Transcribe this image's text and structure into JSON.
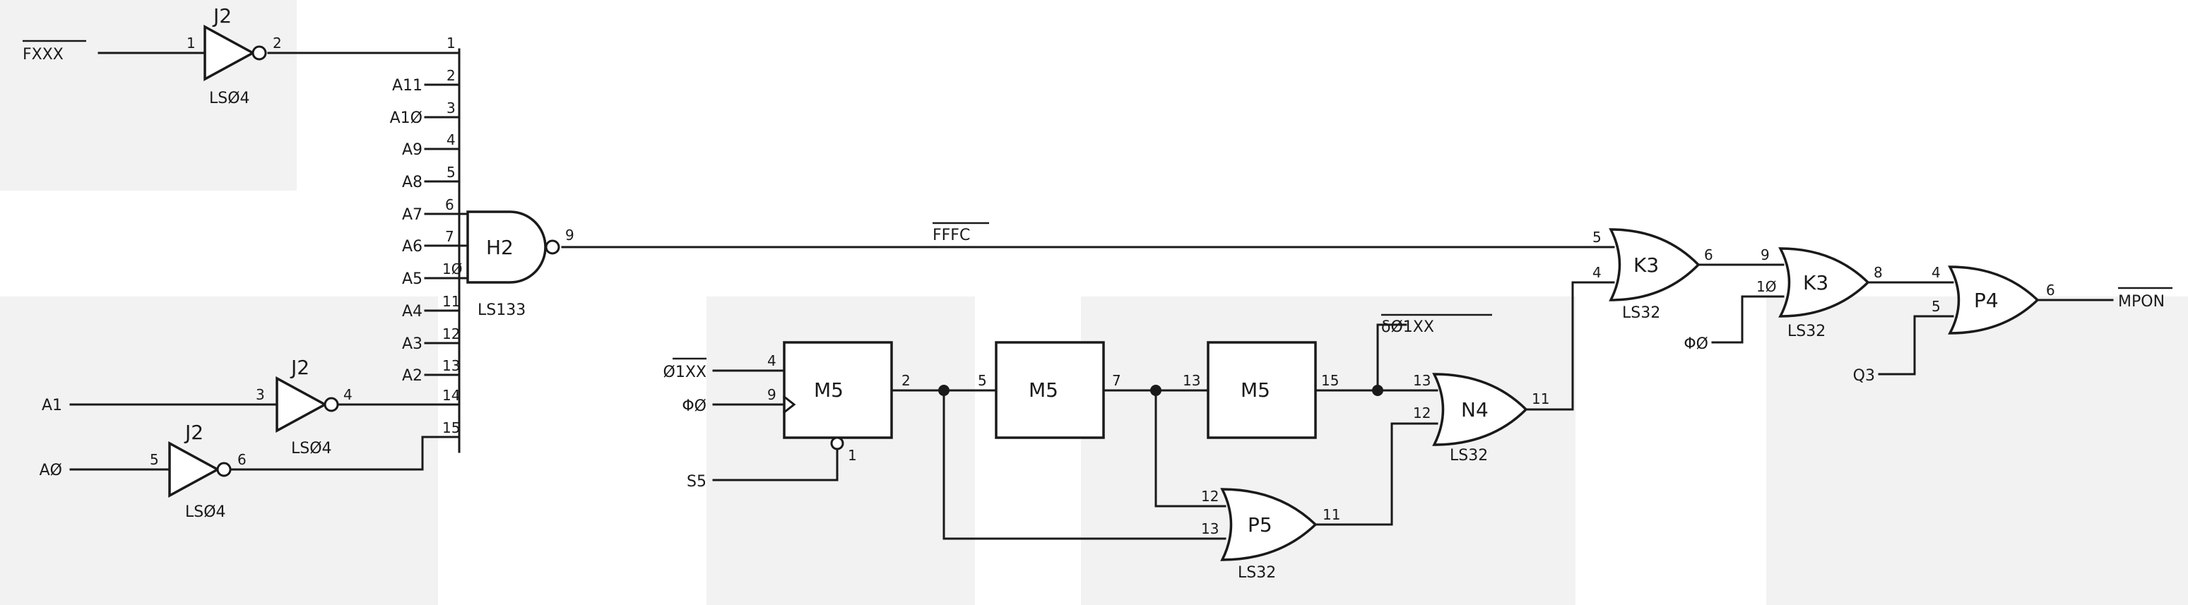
{
  "colors": {
    "ink": "#1a1a1a",
    "paper": "#ffffff",
    "watermark": "#f2f2f2"
  },
  "signals": {
    "fxxx": "FXXX",
    "a11": "A11",
    "a10": "A1Ø",
    "a9": "A9",
    "a8": "A8",
    "a7": "A7",
    "a6": "A6",
    "a5": "A5",
    "a4": "A4",
    "a3": "A3",
    "a2": "A2",
    "a1": "A1",
    "a0": "AØ",
    "fffc": "FFFC",
    "s01xx_in": "Ø1XX",
    "phi0_m5": "ΦØ",
    "s5": "S5",
    "s01xx_out": "δØ1XX",
    "phi0_k3": "ΦØ",
    "q3": "Q3",
    "mpon": "MPON"
  },
  "chips": {
    "j2_top": {
      "ref": "J2",
      "part": "LSØ4",
      "pin_in": "1",
      "pin_out": "2"
    },
    "j2_mid": {
      "ref": "J2",
      "part": "LSØ4",
      "pin_in": "3",
      "pin_out": "4"
    },
    "j2_bot": {
      "ref": "J2",
      "part": "LSØ4",
      "pin_in": "5",
      "pin_out": "6"
    },
    "h2": {
      "ref": "H2",
      "part": "LS133",
      "pin_out": "9",
      "pins": [
        "1",
        "2",
        "3",
        "4",
        "5",
        "6",
        "7",
        "1Ø",
        "11",
        "12",
        "13",
        "14",
        "15"
      ]
    },
    "m5a": {
      "ref": "M5",
      "pin_d": "4",
      "pin_clk": "9",
      "pin_q": "2",
      "pin_clr": "1"
    },
    "m5b": {
      "ref": "M5",
      "pin_in": "5",
      "pin_out": "7"
    },
    "m5c": {
      "ref": "M5",
      "pin_in": "13",
      "pin_out": "15"
    },
    "n4": {
      "ref": "N4",
      "part": "LS32",
      "pin_a": "13",
      "pin_b": "12",
      "pin_out": "11"
    },
    "p5": {
      "ref": "P5",
      "part": "LS32",
      "pin_a": "12",
      "pin_b": "13",
      "pin_out": "11"
    },
    "k3a": {
      "ref": "K3",
      "part": "LS32",
      "pin_a": "5",
      "pin_b": "4",
      "pin_out": "6"
    },
    "k3b": {
      "ref": "K3",
      "part": "LS32",
      "pin_a": "9",
      "pin_b": "1Ø",
      "pin_out": "8"
    },
    "p4": {
      "ref": "P4",
      "pin_a": "4",
      "pin_b": "5",
      "pin_out": "6"
    }
  }
}
